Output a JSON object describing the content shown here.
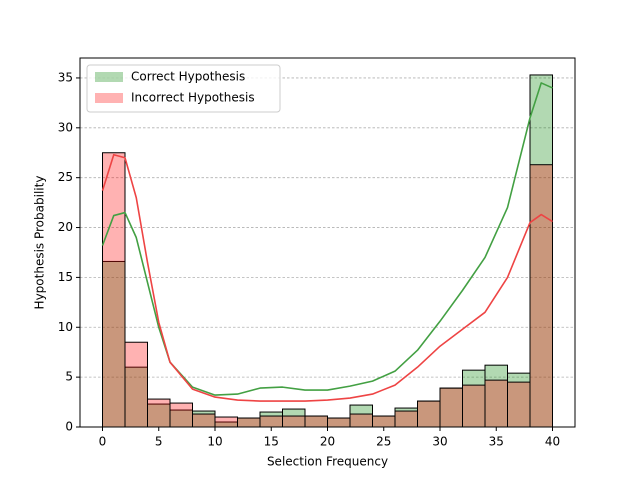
{
  "chart_data": {
    "type": "histogram",
    "xlabel": "Selection Frequency",
    "ylabel": "Hypothesis Probability",
    "bins": [
      0,
      2,
      4,
      6,
      8,
      10,
      12,
      14,
      16,
      18,
      20,
      22,
      24,
      26,
      28,
      30,
      32,
      34,
      36,
      38,
      40
    ],
    "kde_x": [
      0,
      1,
      2,
      3,
      4,
      5,
      6,
      8,
      10,
      12,
      14,
      16,
      18,
      20,
      22,
      24,
      26,
      28,
      30,
      32,
      34,
      36,
      38,
      39,
      40
    ],
    "series": [
      {
        "name": "Correct Hypothesis",
        "color": "#008000",
        "line_color": "#43a043",
        "alpha": 0.3,
        "values": [
          16.6,
          6.0,
          2.3,
          1.7,
          1.6,
          0.5,
          0.9,
          1.5,
          1.8,
          1.1,
          0.9,
          2.2,
          1.1,
          1.9,
          2.6,
          3.9,
          5.7,
          6.2,
          5.4,
          35.3
        ],
        "kde": [
          18.2,
          21.2,
          21.5,
          19,
          14.5,
          10,
          6.5,
          4.0,
          3.2,
          3.3,
          3.9,
          4.0,
          3.7,
          3.7,
          4.1,
          4.6,
          5.6,
          7.7,
          10.6,
          13.7,
          17,
          22,
          31,
          34.5,
          34
        ]
      },
      {
        "name": "Incorrect Hypothesis",
        "color": "#ff0000",
        "line_color": "#ee4444",
        "alpha": 0.3,
        "values": [
          27.5,
          8.5,
          2.8,
          2.4,
          1.3,
          1.0,
          0.9,
          1.1,
          1.1,
          1.1,
          0.9,
          1.3,
          1.1,
          1.6,
          2.6,
          3.9,
          4.2,
          4.7,
          4.5,
          26.3
        ],
        "kde": [
          23.7,
          27.3,
          27,
          23,
          16.5,
          10.5,
          6.5,
          3.8,
          3.0,
          2.7,
          2.6,
          2.6,
          2.6,
          2.7,
          2.9,
          3.3,
          4.2,
          6.0,
          8.1,
          9.8,
          11.5,
          15,
          20.5,
          21.3,
          20.6
        ]
      }
    ],
    "xlim": [
      -2,
      42
    ],
    "ylim": [
      0,
      37
    ],
    "xticks": [
      0,
      5,
      10,
      15,
      20,
      25,
      30,
      35,
      40
    ],
    "yticks": [
      0,
      5,
      10,
      15,
      20,
      25,
      30,
      35
    ],
    "grid": true,
    "legend": "upper left"
  }
}
